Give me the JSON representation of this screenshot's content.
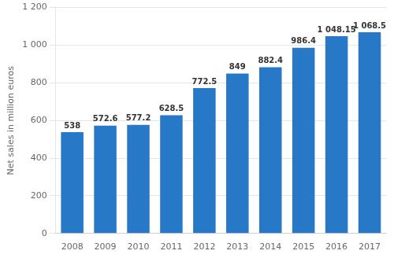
{
  "chart_data": {
    "type": "bar",
    "categories": [
      "2008",
      "2009",
      "2010",
      "2011",
      "2012",
      "2013",
      "2014",
      "2015",
      "2016",
      "2017"
    ],
    "values": [
      538,
      572.6,
      577.2,
      628.5,
      772.5,
      849,
      882.4,
      986.4,
      1048.15,
      1068.5
    ],
    "value_labels": [
      "538",
      "572.6",
      "577.2",
      "628.5",
      "772.5",
      "849",
      "882.4",
      "986.4",
      "1 048.15",
      "1 068.5"
    ],
    "data_labels": true,
    "color": "#2878C8",
    "ylabel": "Net sales in million euros",
    "ylim": [
      0,
      1200
    ],
    "yticks": [
      0,
      200,
      400,
      600,
      800,
      {
        "value": 1000,
        "label": "1 000"
      },
      {
        "value": 1200,
        "label": "1 200"
      }
    ],
    "grid": true
  }
}
